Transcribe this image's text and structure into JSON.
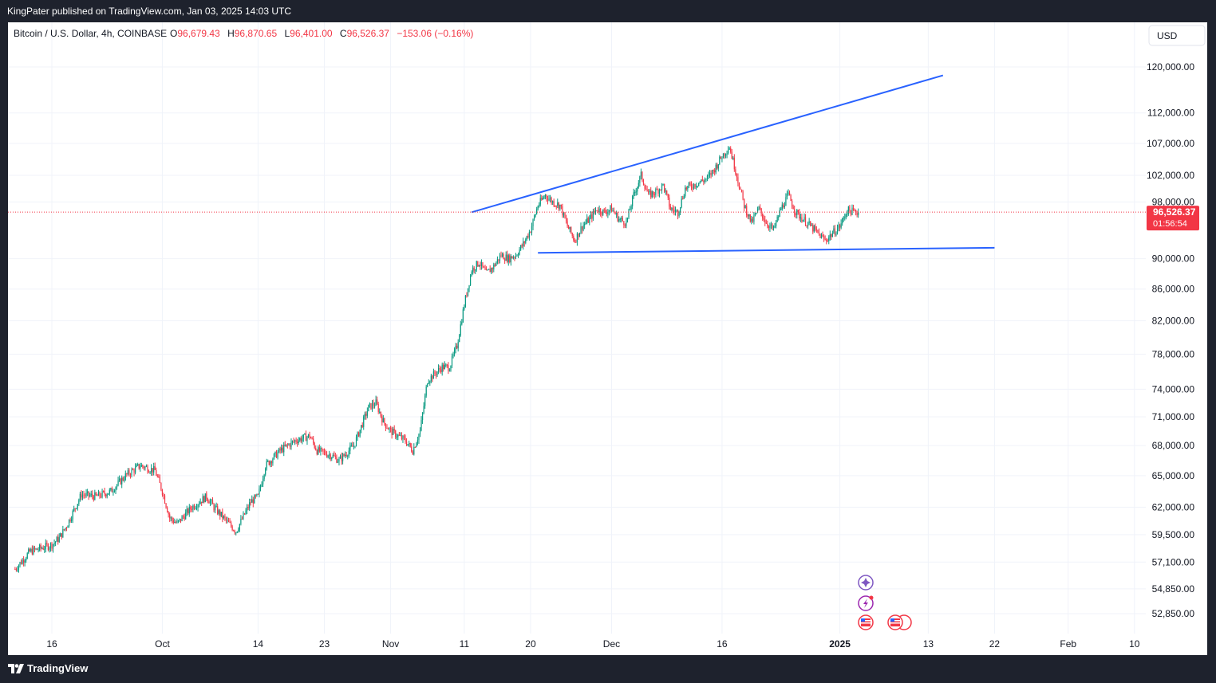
{
  "header": {
    "publisher_text": "KingPater published on TradingView.com, Jan 03, 2025 14:03 UTC"
  },
  "symbol": {
    "name": "Bitcoin / U.S. Dollar, 4h, COINBASE",
    "open_label": "O",
    "open": "96,679.43",
    "high_label": "H",
    "high": "96,870.65",
    "low_label": "L",
    "low": "96,401.00",
    "close_label": "C",
    "close": "96,526.37",
    "change": "−153.06 (−0.16%)"
  },
  "currency_button": "USD",
  "price_badge": {
    "price": "96,526.37",
    "countdown": "01:56:54"
  },
  "footer": {
    "brand": "TradingView"
  },
  "colors": {
    "up": "#089981",
    "down": "#f23645",
    "trendline": "#2962ff",
    "current_price": "#f23645",
    "background": "#ffffff",
    "frame": "#1e222d",
    "event_icon": "#9c27b0"
  },
  "icons": [
    "tradingview-logo-icon",
    "sparkle-event-icon",
    "lightning-event-icon",
    "us-flag-event-icon"
  ],
  "chart_data": {
    "type": "candlestick",
    "title": "Bitcoin / U.S. Dollar, 4h, COINBASE",
    "y_scale": "log",
    "grid": true,
    "legend": "top-left",
    "y_ticks": [
      52850,
      54850,
      57100,
      59500,
      62000,
      65000,
      68000,
      71000,
      74000,
      78000,
      82000,
      86000,
      90000,
      98000,
      102000,
      107000,
      112000,
      120000
    ],
    "y_tick_labels": [
      "52,850.00",
      "54,850.00",
      "57,100.00",
      "59,500.00",
      "62,000.00",
      "65,000.00",
      "68,000.00",
      "71,000.00",
      "74,000.00",
      "78,000.00",
      "82,000.00",
      "86,000.00",
      "90,000.00",
      "98,000.00",
      "102,000.00",
      "107,000.00",
      "112,000.00",
      "120,000.00"
    ],
    "x_ticks": [
      {
        "date": "2024-09-16",
        "label": "16"
      },
      {
        "date": "2024-10-01",
        "label": "Oct"
      },
      {
        "date": "2024-10-14",
        "label": "14"
      },
      {
        "date": "2024-10-23",
        "label": "23"
      },
      {
        "date": "2024-11-01",
        "label": "Nov"
      },
      {
        "date": "2024-11-11",
        "label": "11"
      },
      {
        "date": "2024-11-20",
        "label": "20"
      },
      {
        "date": "2024-12-01",
        "label": "Dec"
      },
      {
        "date": "2024-12-16",
        "label": "16"
      },
      {
        "date": "2025-01-01",
        "label": "2025"
      },
      {
        "date": "2025-01-13",
        "label": "13"
      },
      {
        "date": "2025-01-22",
        "label": "22"
      },
      {
        "date": "2025-02-01",
        "label": "Feb"
      },
      {
        "date": "2025-02-10",
        "label": "10"
      }
    ],
    "last_price": 96526.37,
    "price_path": [
      [
        "2024-09-11",
        56500
      ],
      [
        "2024-09-13",
        58000
      ],
      [
        "2024-09-16",
        58600
      ],
      [
        "2024-09-17",
        59200
      ],
      [
        "2024-09-18",
        60300
      ],
      [
        "2024-09-20",
        63200
      ],
      [
        "2024-09-22",
        63000
      ],
      [
        "2024-09-24",
        63500
      ],
      [
        "2024-09-26",
        65000
      ],
      [
        "2024-09-28",
        66000
      ],
      [
        "2024-09-30",
        65500
      ],
      [
        "2024-10-01",
        63500
      ],
      [
        "2024-10-02",
        61000
      ],
      [
        "2024-10-03",
        60500
      ],
      [
        "2024-10-05",
        62000
      ],
      [
        "2024-10-07",
        63000
      ],
      [
        "2024-10-08",
        62000
      ],
      [
        "2024-10-10",
        60500
      ],
      [
        "2024-10-11",
        59800
      ],
      [
        "2024-10-13",
        62500
      ],
      [
        "2024-10-14",
        63000
      ],
      [
        "2024-10-15",
        66000
      ],
      [
        "2024-10-17",
        67500
      ],
      [
        "2024-10-19",
        68500
      ],
      [
        "2024-10-21",
        69000
      ],
      [
        "2024-10-22",
        67500
      ],
      [
        "2024-10-24",
        67000
      ],
      [
        "2024-10-25",
        66500
      ],
      [
        "2024-10-27",
        68000
      ],
      [
        "2024-10-29",
        72000
      ],
      [
        "2024-10-30",
        72500
      ],
      [
        "2024-10-31",
        70500
      ],
      [
        "2024-11-01",
        69500
      ],
      [
        "2024-11-03",
        68500
      ],
      [
        "2024-11-04",
        67500
      ],
      [
        "2024-11-05",
        69500
      ],
      [
        "2024-11-06",
        75000
      ],
      [
        "2024-11-08",
        76500
      ],
      [
        "2024-11-09",
        76500
      ],
      [
        "2024-11-10",
        79000
      ],
      [
        "2024-11-11",
        84000
      ],
      [
        "2024-11-12",
        88500
      ],
      [
        "2024-11-13",
        89500
      ],
      [
        "2024-11-14",
        88000
      ],
      [
        "2024-11-15",
        89000
      ],
      [
        "2024-11-16",
        90500
      ],
      [
        "2024-11-17",
        90000
      ],
      [
        "2024-11-18",
        90500
      ],
      [
        "2024-11-19",
        92000
      ],
      [
        "2024-11-20",
        94000
      ],
      [
        "2024-11-21",
        97500
      ],
      [
        "2024-11-22",
        99000
      ],
      [
        "2024-11-23",
        98000
      ],
      [
        "2024-11-24",
        97500
      ],
      [
        "2024-11-25",
        94500
      ],
      [
        "2024-11-26",
        92500
      ],
      [
        "2024-11-27",
        94500
      ],
      [
        "2024-11-28",
        95500
      ],
      [
        "2024-11-29",
        97000
      ],
      [
        "2024-11-30",
        96500
      ],
      [
        "2024-12-01",
        97000
      ],
      [
        "2024-12-02",
        95500
      ],
      [
        "2024-12-03",
        95000
      ],
      [
        "2024-12-04",
        99000
      ],
      [
        "2024-12-05",
        102000
      ],
      [
        "2024-12-06",
        99000
      ],
      [
        "2024-12-07",
        99500
      ],
      [
        "2024-12-08",
        100500
      ],
      [
        "2024-12-09",
        97000
      ],
      [
        "2024-12-10",
        96500
      ],
      [
        "2024-12-11",
        100000
      ],
      [
        "2024-12-12",
        100500
      ],
      [
        "2024-12-13",
        101000
      ],
      [
        "2024-12-14",
        101500
      ],
      [
        "2024-12-15",
        103000
      ],
      [
        "2024-12-16",
        105000
      ],
      [
        "2024-12-17",
        106500
      ],
      [
        "2024-12-18",
        102000
      ],
      [
        "2024-12-19",
        97500
      ],
      [
        "2024-12-20",
        95000
      ],
      [
        "2024-12-21",
        97000
      ],
      [
        "2024-12-22",
        95000
      ],
      [
        "2024-12-23",
        94000
      ],
      [
        "2024-12-24",
        97000
      ],
      [
        "2024-12-25",
        99000
      ],
      [
        "2024-12-26",
        96500
      ],
      [
        "2024-12-27",
        95500
      ],
      [
        "2024-12-28",
        94500
      ],
      [
        "2024-12-29",
        93500
      ],
      [
        "2024-12-30",
        92500
      ],
      [
        "2024-12-31",
        93500
      ],
      [
        "2025-01-01",
        94500
      ],
      [
        "2025-01-02",
        96800
      ],
      [
        "2025-01-03",
        96526
      ]
    ],
    "trendlines": [
      {
        "name": "upper",
        "start": [
          "2024-11-12",
          96500
        ],
        "end": [
          "2025-01-15",
          118500
        ]
      },
      {
        "name": "lower",
        "start": [
          "2024-11-21",
          90800
        ],
        "end": [
          "2025-01-22",
          91500
        ]
      }
    ]
  }
}
